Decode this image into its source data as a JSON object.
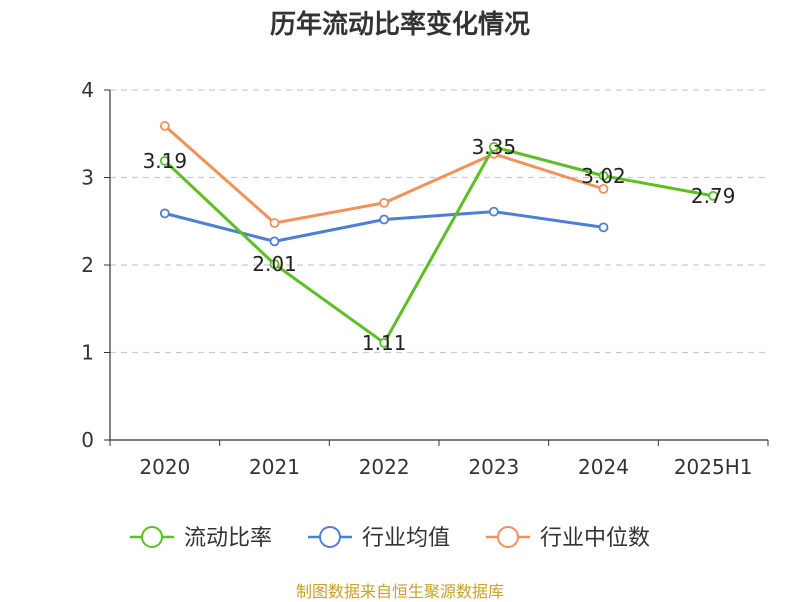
{
  "title": "历年流动比率变化情况",
  "source": "制图数据来自恒生聚源数据库",
  "colors": {
    "current_ratio": "#5cbf24",
    "industry_mean": "#4e7fd6",
    "industry_median": "#f2925a",
    "grid": "#cccccc",
    "axis": "#333333",
    "source_text": "#c9a227"
  },
  "chart_data": {
    "type": "line",
    "title": "历年流动比率变化情况",
    "categories": [
      "2020",
      "2021",
      "2022",
      "2023",
      "2024",
      "2025H1"
    ],
    "ylim": [
      0,
      4
    ],
    "yticks": [
      0,
      1,
      2,
      3,
      4
    ],
    "grid": true,
    "legend_position": "bottom",
    "series": [
      {
        "name": "流动比率",
        "values": [
          3.19,
          2.01,
          1.11,
          3.35,
          3.02,
          2.79
        ],
        "data_labels": true
      },
      {
        "name": "行业均值",
        "values": [
          2.59,
          2.27,
          2.52,
          2.61,
          2.43,
          null
        ],
        "data_labels": false
      },
      {
        "name": "行业中位数",
        "values": [
          3.59,
          2.48,
          2.71,
          3.27,
          2.87,
          null
        ],
        "data_labels": false
      }
    ]
  }
}
